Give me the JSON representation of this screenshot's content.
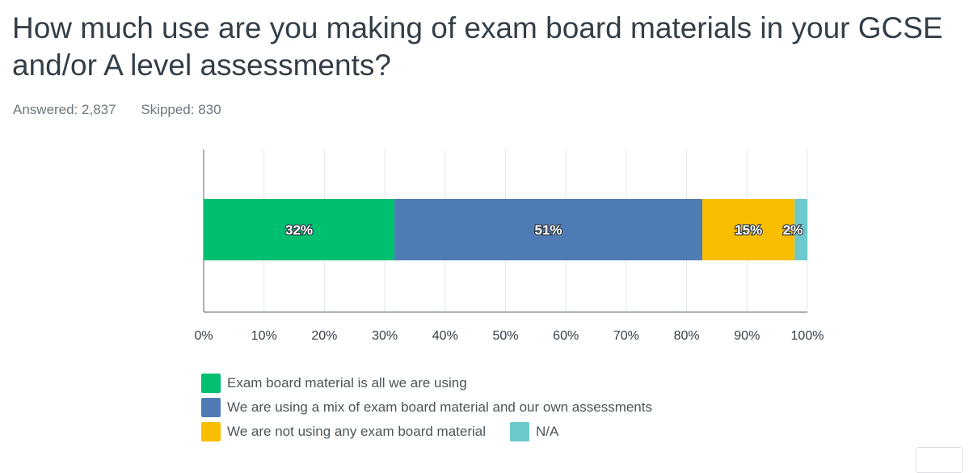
{
  "question": {
    "title": "How much use are you making of exam board materials in your GCSE and/or A level assessments?",
    "answered": "Answered: 2,837",
    "skipped": "Skipped: 830"
  },
  "chart_data": {
    "type": "bar",
    "orientation": "horizontal",
    "stacked": true,
    "xlim": [
      0,
      100
    ],
    "x_ticks": [
      "0%",
      "10%",
      "20%",
      "30%",
      "40%",
      "50%",
      "60%",
      "70%",
      "80%",
      "90%",
      "100%"
    ],
    "grid": true,
    "legend_position": "bottom",
    "series": [
      {
        "name": "Exam board material is all we are using",
        "value": 31.6,
        "label": "32%",
        "color": "#00bf6f"
      },
      {
        "name": "We are using a mix of exam board material and our own assessments",
        "value": 51.0,
        "label": "51%",
        "color": "#507cb6"
      },
      {
        "name": "We are not using any exam board material",
        "value": 15.3,
        "label": "15%",
        "color": "#f9be00"
      },
      {
        "name": "N/A",
        "value": 2.1,
        "label": "2%",
        "color": "#6bc8cd"
      }
    ]
  }
}
